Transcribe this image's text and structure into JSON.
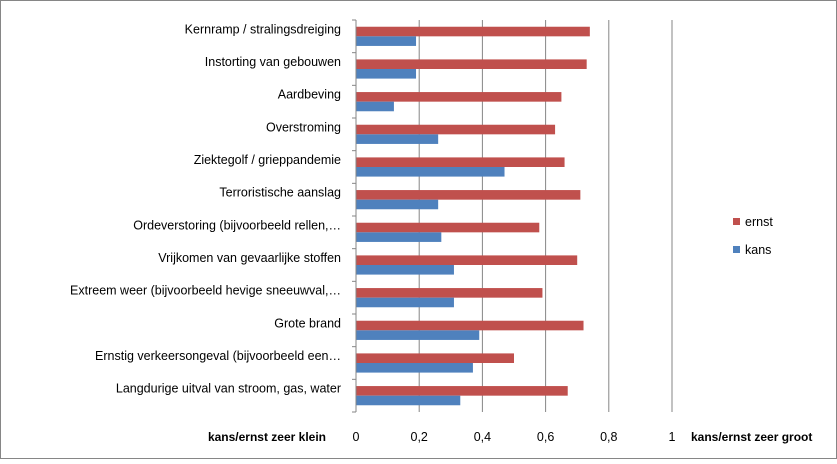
{
  "chart_data": {
    "type": "bar",
    "orientation": "horizontal",
    "categories": [
      "Kernramp / stralingsdreiging",
      "Instorting van gebouwen",
      "Aardbeving",
      "Overstroming",
      "Ziektegolf / grieppandemie",
      "Terroristische aanslag",
      "Ordeverstoring (bijvoorbeeld rellen,…",
      "Vrijkomen van gevaarlijke stoffen",
      "Extreem weer (bijvoorbeeld hevige sneeuwval,…",
      "Grote brand",
      "Ernstig verkeersongeval (bijvoorbeeld een…",
      "Langdurige uitval van stroom,  gas, water"
    ],
    "series": [
      {
        "name": "ernst",
        "color": "#c0504d",
        "values": [
          0.74,
          0.73,
          0.65,
          0.63,
          0.66,
          0.71,
          0.58,
          0.7,
          0.59,
          0.72,
          0.5,
          0.67
        ]
      },
      {
        "name": "kans",
        "color": "#4f81bd",
        "values": [
          0.19,
          0.19,
          0.12,
          0.26,
          0.47,
          0.26,
          0.27,
          0.31,
          0.31,
          0.39,
          0.37,
          0.33
        ]
      }
    ],
    "xlim": [
      0,
      1
    ],
    "xticks": [
      0,
      0.2,
      0.4,
      0.6,
      0.8,
      1
    ],
    "xtick_labels": [
      "0",
      "0,2",
      "0,4",
      "0,6",
      "0,8",
      "1"
    ],
    "x_left_label": "kans/ernst zeer klein",
    "x_right_label": "kans/ernst zeer groot",
    "grid": true,
    "legend_position": "right",
    "legend_order": [
      "ernst",
      "kans"
    ]
  }
}
